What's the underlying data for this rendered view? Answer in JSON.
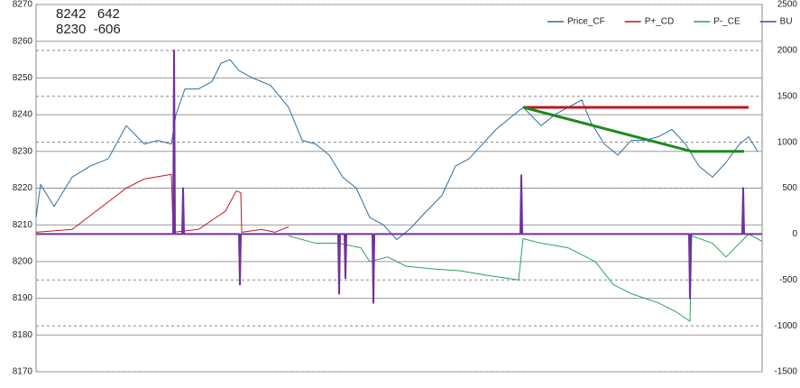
{
  "chart_data": {
    "type": "line",
    "annotations": [
      "8242   642",
      "8230  -606"
    ],
    "xlim": [
      0,
      805
    ],
    "ylim": [
      8170,
      8270
    ],
    "yticks": [
      8170,
      8180,
      8190,
      8200,
      8210,
      8220,
      8230,
      8240,
      8250,
      8260,
      8270
    ],
    "y2lim": [
      -1500,
      2500
    ],
    "y2ticks": [
      -1500,
      -1000,
      -500,
      0,
      500,
      1000,
      1500,
      2000,
      2500
    ],
    "grid": true,
    "legend": "top-right",
    "series": [
      {
        "name": "Price_CF",
        "color": "#2a6fa5",
        "axis": "y",
        "x": [
          0,
          5,
          20,
          40,
          60,
          80,
          100,
          120,
          135,
          150,
          155,
          165,
          180,
          195,
          205,
          215,
          225,
          240,
          260,
          280,
          295,
          310,
          325,
          340,
          355,
          370,
          385,
          400,
          415,
          430,
          450,
          465,
          480,
          495,
          510,
          525,
          540,
          560,
          575,
          590,
          605,
          615,
          630,
          645,
          660,
          675,
          690,
          705,
          720,
          735,
          750,
          765,
          780,
          790,
          800
        ],
        "values": [
          8212,
          8221,
          8215,
          8223,
          8226,
          8228,
          8237,
          8232,
          8233,
          8232,
          8240,
          8247,
          8247,
          8249,
          8254,
          8255,
          8252,
          8250,
          8248,
          8242,
          8233,
          8232,
          8229,
          8223,
          8220,
          8212,
          8210,
          8206,
          8209,
          8213,
          8218,
          8226,
          8228,
          8232,
          8236,
          8239,
          8242,
          8237,
          8240,
          8242,
          8244,
          8238,
          8232,
          8229,
          8233,
          8233,
          8234,
          8236,
          8232,
          8226,
          8223,
          8227,
          8232,
          8234,
          8230
        ]
      },
      {
        "name": "P+_CD",
        "color": "#c0171d",
        "axis": "y2",
        "x": [
          0,
          40,
          60,
          80,
          100,
          120,
          150,
          152,
          180,
          195,
          210,
          222,
          227,
          228,
          250,
          265,
          280
        ],
        "values": [
          20,
          50,
          200,
          350,
          500,
          600,
          650,
          20,
          50,
          150,
          250,
          470,
          450,
          20,
          50,
          20,
          80
        ]
      },
      {
        "name": "P-_CE",
        "color": "#2ca05a",
        "axis": "y2",
        "x": [
          280,
          310,
          335,
          360,
          370,
          390,
          410,
          440,
          470,
          500,
          535,
          540,
          560,
          590,
          620,
          640,
          660,
          690,
          710,
          725,
          727,
          750,
          765,
          780,
          790,
          805
        ],
        "values": [
          -20,
          -100,
          -100,
          -150,
          -300,
          -250,
          -350,
          -380,
          -400,
          -450,
          -500,
          -50,
          -100,
          -150,
          -300,
          -550,
          -650,
          -750,
          -850,
          -950,
          -20,
          -100,
          -250,
          -100,
          0,
          -80
        ]
      },
      {
        "name": "BU",
        "color": "#7030a0",
        "axis": "y2",
        "x": [
          0,
          152,
          153,
          154,
          162,
          163,
          164,
          225,
          226,
          227,
          335,
          336,
          337,
          342,
          343,
          344,
          373,
          374,
          375,
          537,
          538,
          539,
          724,
          725,
          726,
          783,
          784,
          785,
          805
        ],
        "values": [
          0,
          0,
          2000,
          0,
          0,
          500,
          0,
          0,
          -550,
          0,
          0,
          -650,
          0,
          0,
          -480,
          0,
          0,
          -750,
          0,
          0,
          640,
          0,
          0,
          -700,
          0,
          0,
          500,
          0,
          0
        ]
      }
    ],
    "trend_lines": [
      {
        "color": "#c0171d",
        "axis": "y",
        "x": [
          540,
          790
        ],
        "values": [
          8242,
          8242
        ]
      },
      {
        "color": "#1d8a1d",
        "axis": "y",
        "x": [
          540,
          727,
          785
        ],
        "values": [
          8242,
          8230,
          8230
        ]
      }
    ]
  }
}
